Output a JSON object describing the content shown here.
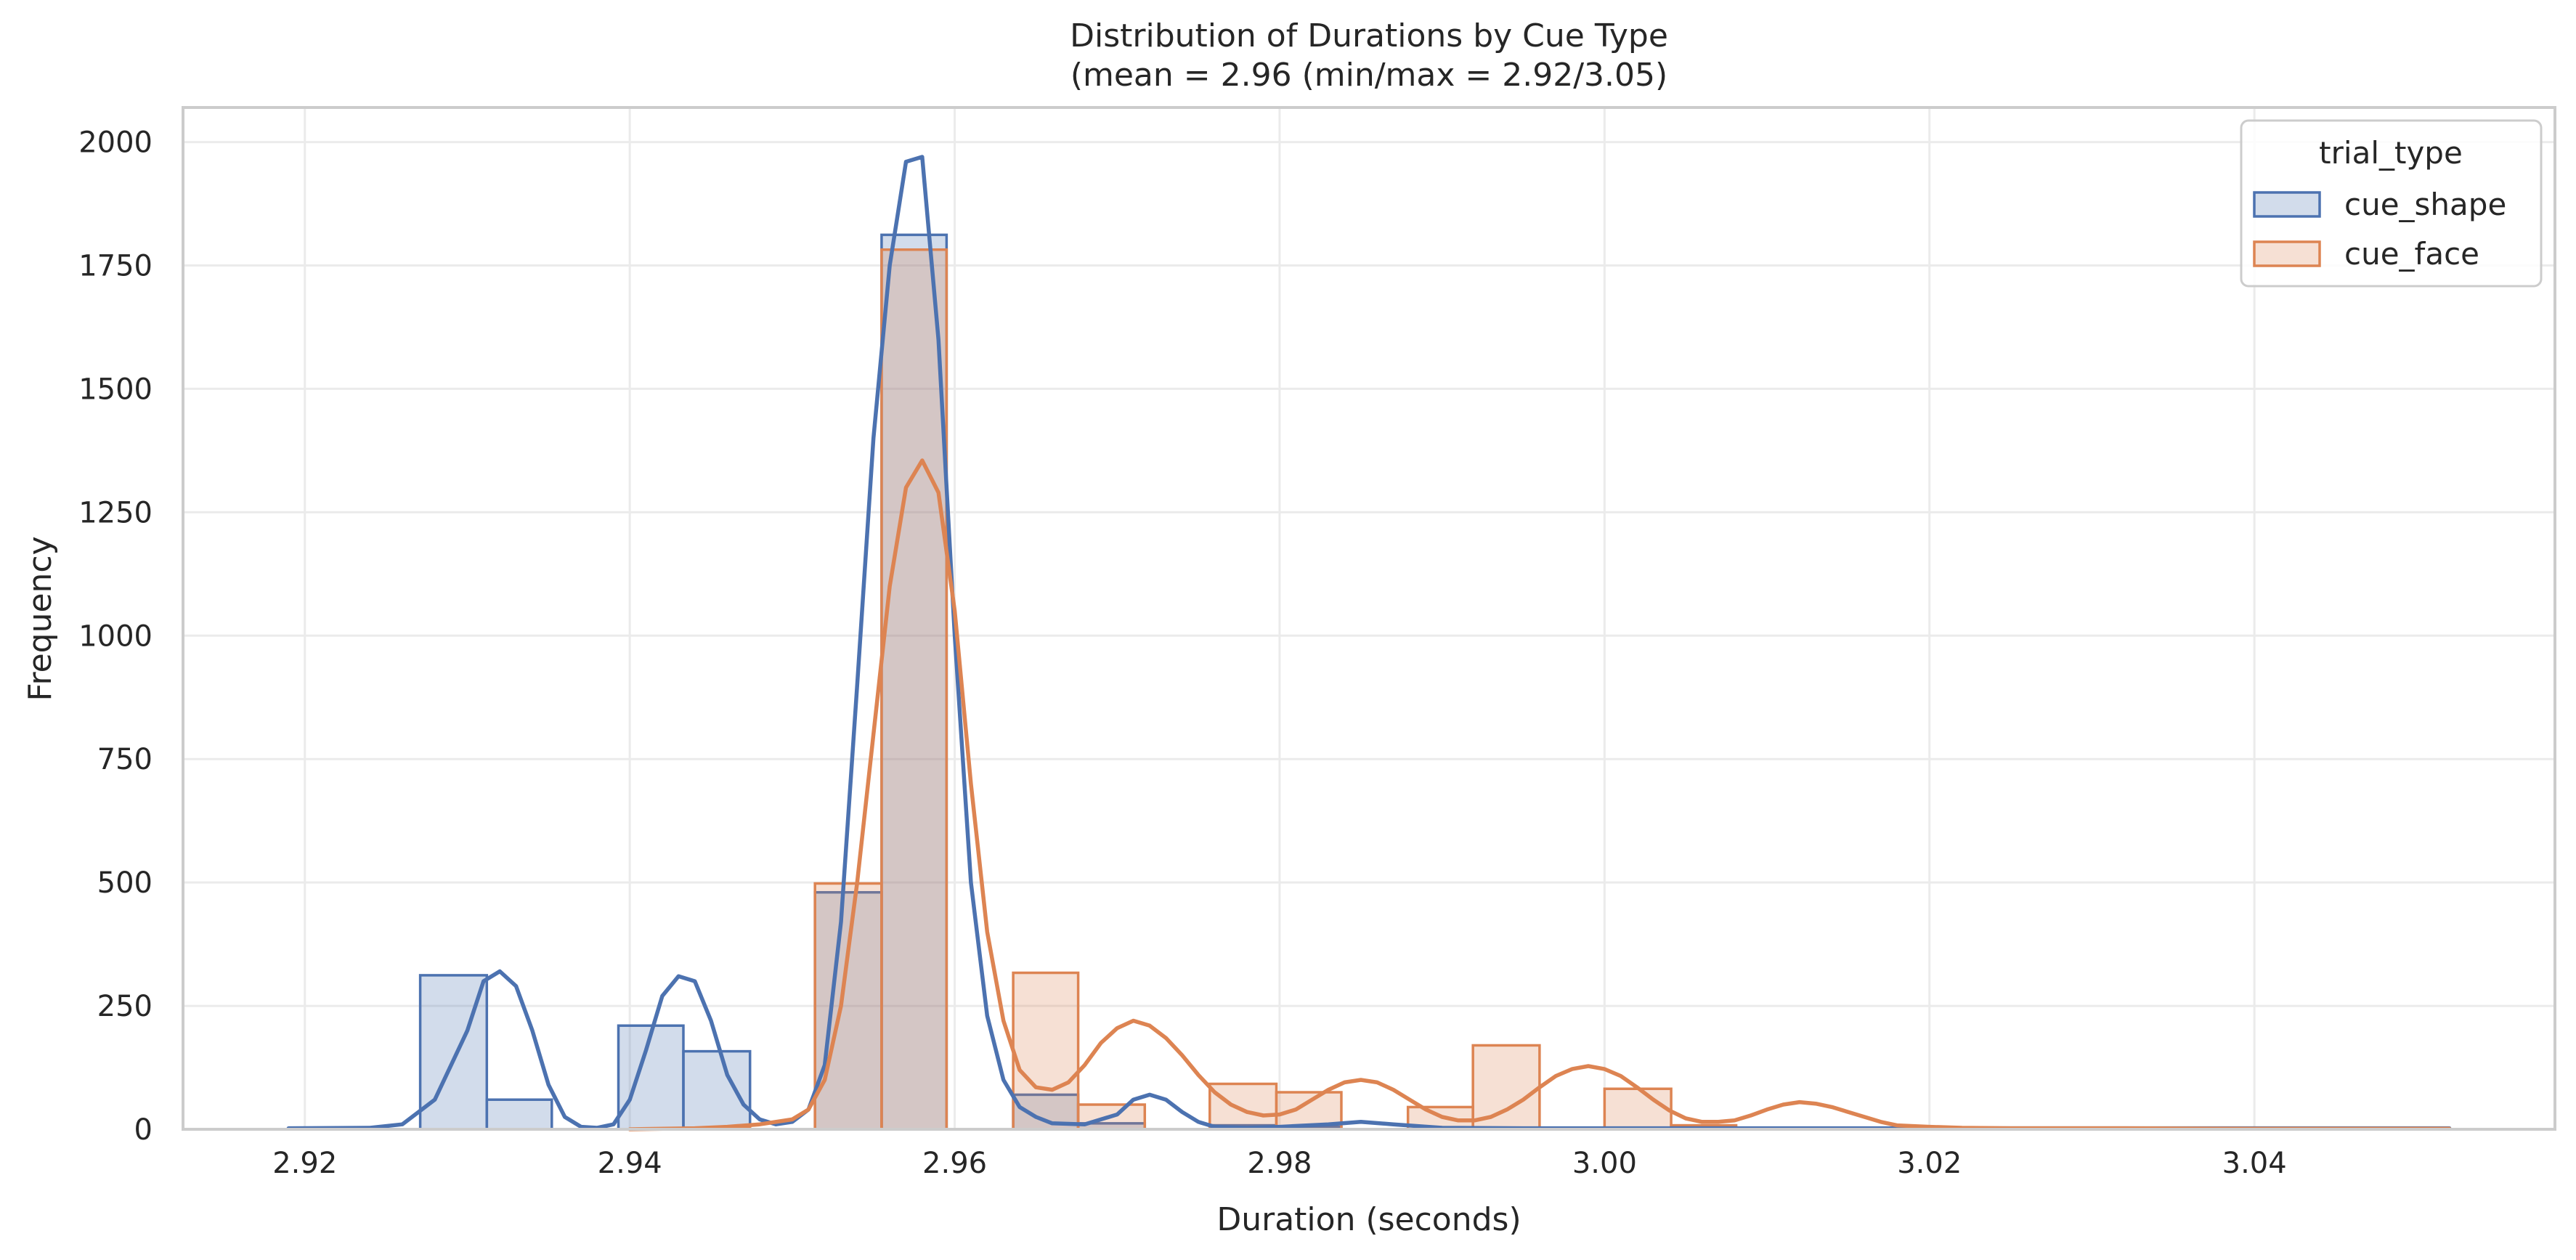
{
  "chart_data": {
    "type": "histogram",
    "title": "Distribution of Durations by Cue Type",
    "subtitle": "(mean = 2.96 (min/max = 2.92/3.05)",
    "xlabel": "Duration (seconds)",
    "ylabel": "Frequency",
    "xlim": [
      2.9125,
      3.0585
    ],
    "ylim": [
      0,
      2070
    ],
    "x_ticks": [
      2.92,
      2.94,
      2.96,
      2.98,
      3.0,
      3.02,
      3.04
    ],
    "x_tick_labels": [
      "2.92",
      "2.94",
      "2.96",
      "2.98",
      "3.00",
      "3.02",
      "3.04"
    ],
    "y_ticks": [
      0,
      250,
      500,
      750,
      1000,
      1250,
      1500,
      1750,
      2000
    ],
    "y_tick_labels": [
      "0",
      "250",
      "500",
      "750",
      "1000",
      "1250",
      "1500",
      "1750",
      "2000"
    ],
    "grid": true,
    "legend": {
      "title": "trial_type",
      "position": "top-right"
    },
    "bin_edges": [
      2.919,
      2.9231,
      2.9271,
      2.9312,
      2.9352,
      2.9393,
      2.9433,
      2.9474,
      2.9514,
      2.9555,
      2.9595,
      2.9636,
      2.9676,
      2.9717,
      2.9757,
      2.9798,
      2.9838,
      2.9879,
      2.9919,
      2.996,
      3.0,
      3.0041,
      3.0081,
      3.0122,
      3.0162,
      3.0203,
      3.0243,
      3.0284,
      3.0324,
      3.0365,
      3.0405,
      3.0446,
      3.0486,
      3.0527
    ],
    "series": [
      {
        "name": "cue_shape",
        "color": "#4c72b0",
        "fill": "rgba(76,114,176,0.25)",
        "counts": [
          0,
          0,
          312,
          60,
          0,
          210,
          158,
          0,
          480,
          1812,
          0,
          70,
          12,
          0,
          8,
          5,
          0,
          0,
          0,
          0,
          0,
          0,
          0,
          0,
          0,
          0,
          0,
          0,
          0,
          0,
          0,
          0,
          0
        ],
        "kde_x": [
          2.919,
          2.924,
          2.926,
          2.928,
          2.93,
          2.931,
          2.932,
          2.933,
          2.934,
          2.935,
          2.936,
          2.937,
          2.938,
          2.939,
          2.94,
          2.941,
          2.942,
          2.943,
          2.944,
          2.945,
          2.946,
          2.947,
          2.948,
          2.949,
          2.95,
          2.951,
          2.952,
          2.953,
          2.954,
          2.955,
          2.956,
          2.957,
          2.958,
          2.959,
          2.96,
          2.961,
          2.962,
          2.963,
          2.964,
          2.965,
          2.966,
          2.968,
          2.97,
          2.971,
          2.972,
          2.973,
          2.974,
          2.975,
          2.976,
          2.978,
          2.98,
          2.983,
          2.985,
          2.987,
          2.99,
          2.995,
          3.0,
          3.01,
          3.02,
          3.03,
          3.04,
          3.052
        ],
        "kde_y": [
          2,
          3,
          10,
          60,
          200,
          300,
          320,
          290,
          200,
          90,
          25,
          5,
          3,
          10,
          60,
          160,
          270,
          310,
          300,
          220,
          110,
          50,
          20,
          10,
          15,
          40,
          130,
          420,
          900,
          1400,
          1750,
          1960,
          1970,
          1600,
          1000,
          500,
          230,
          100,
          45,
          25,
          12,
          10,
          30,
          60,
          70,
          60,
          35,
          15,
          5,
          3,
          5,
          10,
          15,
          10,
          3,
          2,
          2,
          2,
          2,
          2,
          2,
          2
        ]
      },
      {
        "name": "cue_face",
        "color": "#dd8452",
        "fill": "rgba(221,132,82,0.25)",
        "counts": [
          0,
          0,
          0,
          0,
          0,
          0,
          3,
          0,
          498,
          1782,
          0,
          317,
          50,
          0,
          92,
          75,
          0,
          45,
          170,
          0,
          82,
          8,
          0,
          0,
          0,
          0,
          0,
          0,
          0,
          0,
          0,
          0,
          0
        ],
        "kde_x": [
          2.94,
          2.944,
          2.946,
          2.948,
          2.95,
          2.951,
          2.952,
          2.953,
          2.954,
          2.955,
          2.956,
          2.957,
          2.958,
          2.959,
          2.96,
          2.961,
          2.962,
          2.963,
          2.964,
          2.965,
          2.966,
          2.967,
          2.968,
          2.969,
          2.97,
          2.971,
          2.972,
          2.973,
          2.974,
          2.975,
          2.976,
          2.977,
          2.978,
          2.979,
          2.98,
          2.981,
          2.982,
          2.983,
          2.984,
          2.985,
          2.986,
          2.987,
          2.988,
          2.989,
          2.99,
          2.991,
          2.992,
          2.993,
          2.994,
          2.995,
          2.996,
          2.997,
          2.998,
          2.999,
          3.0,
          3.001,
          3.002,
          3.003,
          3.004,
          3.005,
          3.006,
          3.007,
          3.008,
          3.009,
          3.01,
          3.011,
          3.012,
          3.013,
          3.014,
          3.015,
          3.016,
          3.017,
          3.018,
          3.02,
          3.022,
          3.025,
          3.028,
          3.032,
          3.04,
          3.052
        ],
        "kde_y": [
          0,
          2,
          5,
          10,
          20,
          40,
          100,
          250,
          500,
          800,
          1100,
          1300,
          1355,
          1290,
          1050,
          700,
          400,
          220,
          120,
          85,
          80,
          95,
          130,
          175,
          205,
          220,
          210,
          185,
          150,
          110,
          75,
          50,
          35,
          28,
          30,
          40,
          60,
          80,
          95,
          100,
          95,
          80,
          60,
          40,
          25,
          18,
          18,
          25,
          40,
          60,
          85,
          108,
          122,
          128,
          122,
          108,
          85,
          60,
          38,
          22,
          15,
          15,
          18,
          28,
          40,
          50,
          55,
          52,
          45,
          35,
          25,
          15,
          8,
          5,
          3,
          2,
          2,
          2,
          1,
          1
        ]
      }
    ]
  }
}
